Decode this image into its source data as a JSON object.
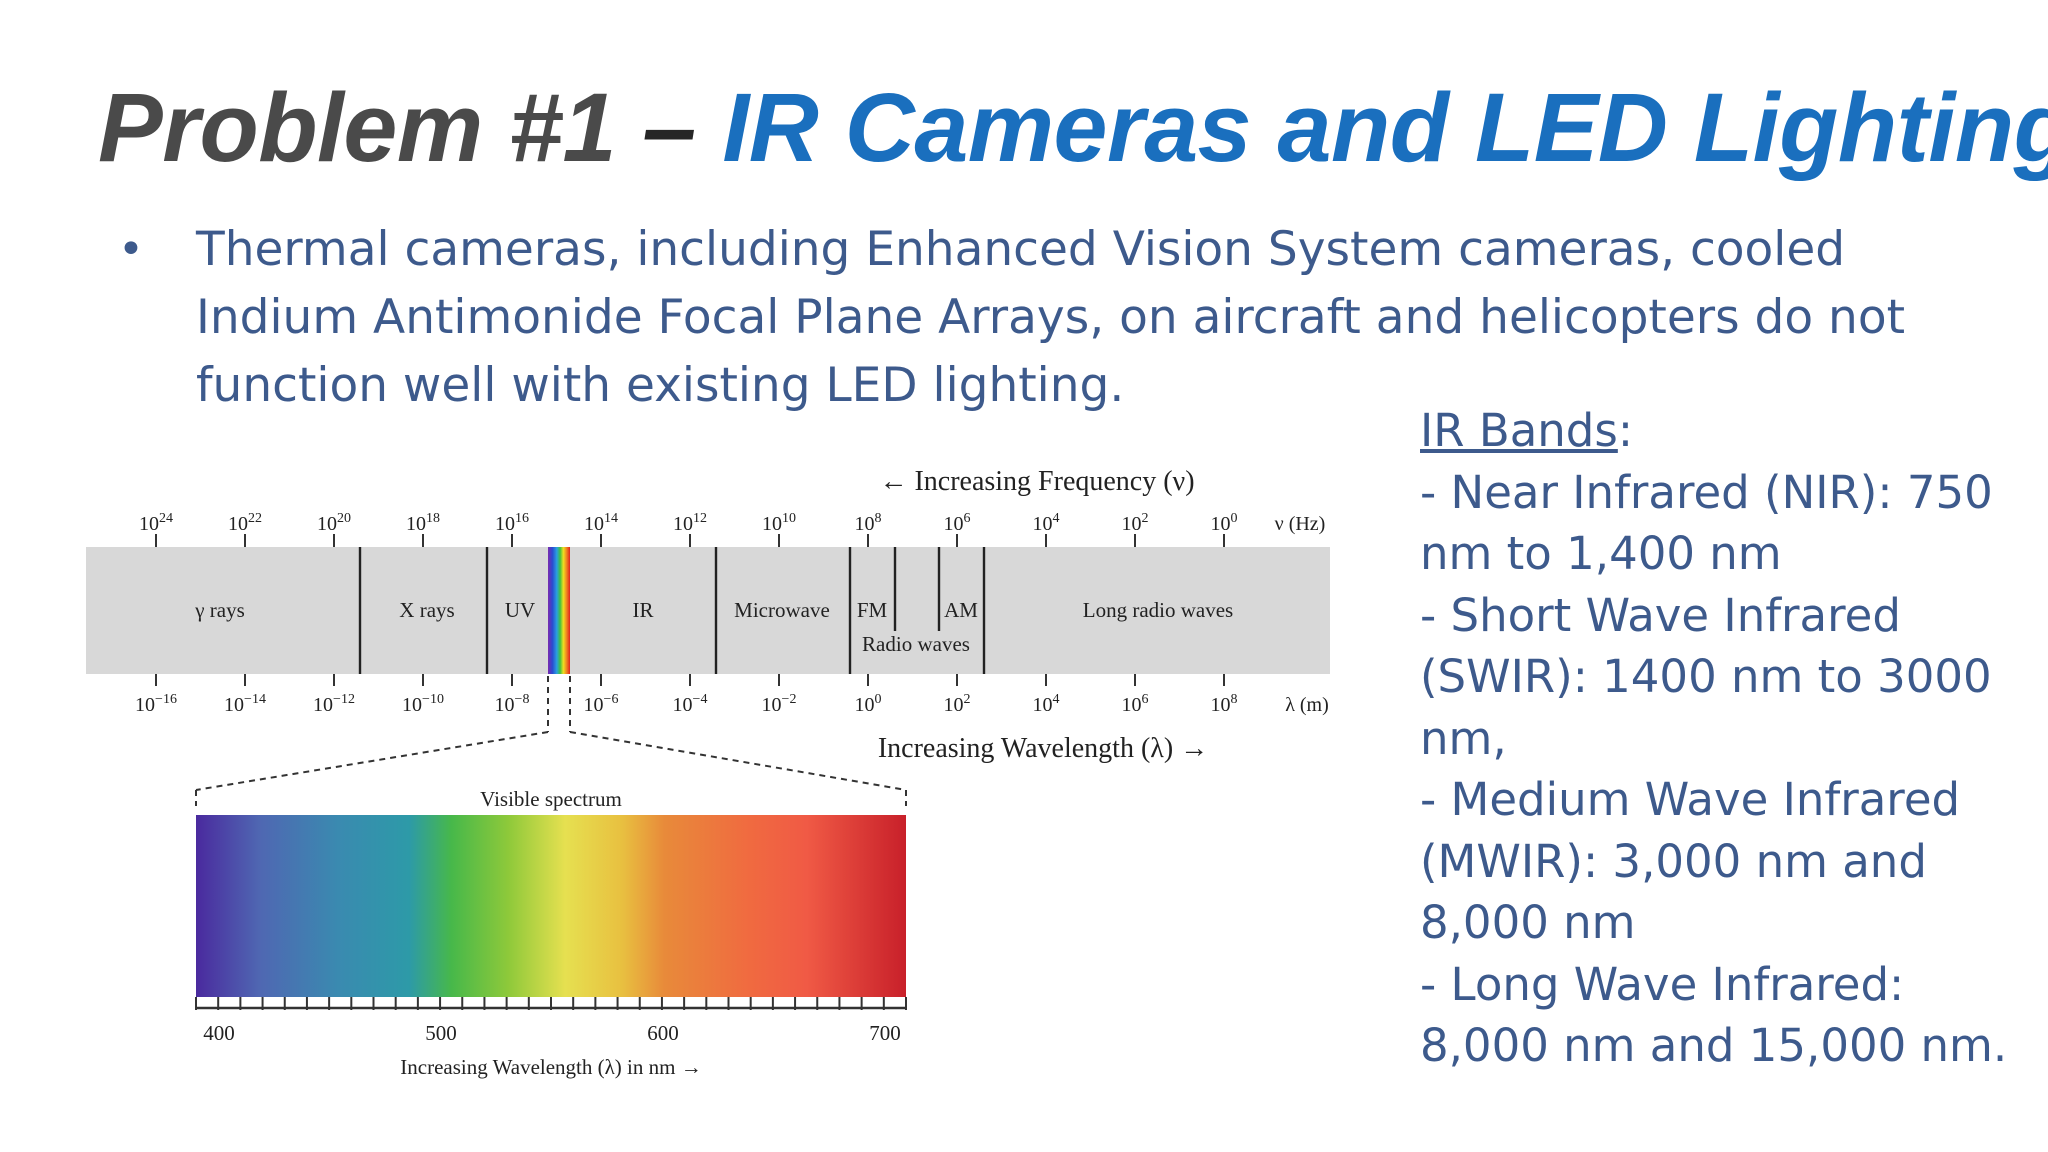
{
  "title": {
    "prefix": "Problem #1",
    "dash": " – ",
    "main": "IR Cameras and LED Lighting"
  },
  "bullet": {
    "marker": "•",
    "lines": [
      "Thermal cameras, including Enhanced Vision System cameras, cooled",
      "Indium Antimonide Focal Plane Arrays, on aircraft and helicopters do not",
      "function well with existing LED lighting."
    ]
  },
  "ir_bands": {
    "heading": "IR Bands",
    "colon": ":",
    "lines": [
      "- Near Infrared (NIR): 750",
      "nm to 1,400 nm",
      "- Short Wave Infrared",
      "(SWIR): 1400 nm to 3000",
      "nm,",
      "- Medium Wave Infrared",
      "(MWIR): 3,000 nm and",
      "8,000 nm",
      "- Long Wave Infrared:",
      "8,000 nm and 15,000 nm."
    ]
  },
  "spectrum": {
    "frequency_label": "← Increasing Frequency (ν)",
    "wavelength_label": "Increasing Wavelength (λ) →",
    "freq_unit": "ν (Hz)",
    "wave_unit": "λ (m)",
    "freq_exponents": [
      "24",
      "22",
      "20",
      "18",
      "16",
      "14",
      "12",
      "10",
      "8",
      "6",
      "4",
      "2",
      "0"
    ],
    "wave_exponents": [
      "−16",
      "−14",
      "−12",
      "−10",
      "−8",
      "−6",
      "−4",
      "−2",
      "0",
      "2",
      "4",
      "6",
      "8"
    ],
    "tick_base": "10",
    "bands": {
      "gamma": "γ rays",
      "xray": "X rays",
      "uv": "UV",
      "ir": "IR",
      "microwave": "Microwave",
      "fm": "FM",
      "am": "AM",
      "radio": "Radio waves",
      "long_radio": "Long radio waves"
    },
    "visible": {
      "title": "Visible spectrum",
      "ticks": [
        "400",
        "500",
        "600",
        "700"
      ],
      "axis_label": "Increasing Wavelength (λ) in nm →"
    }
  }
}
